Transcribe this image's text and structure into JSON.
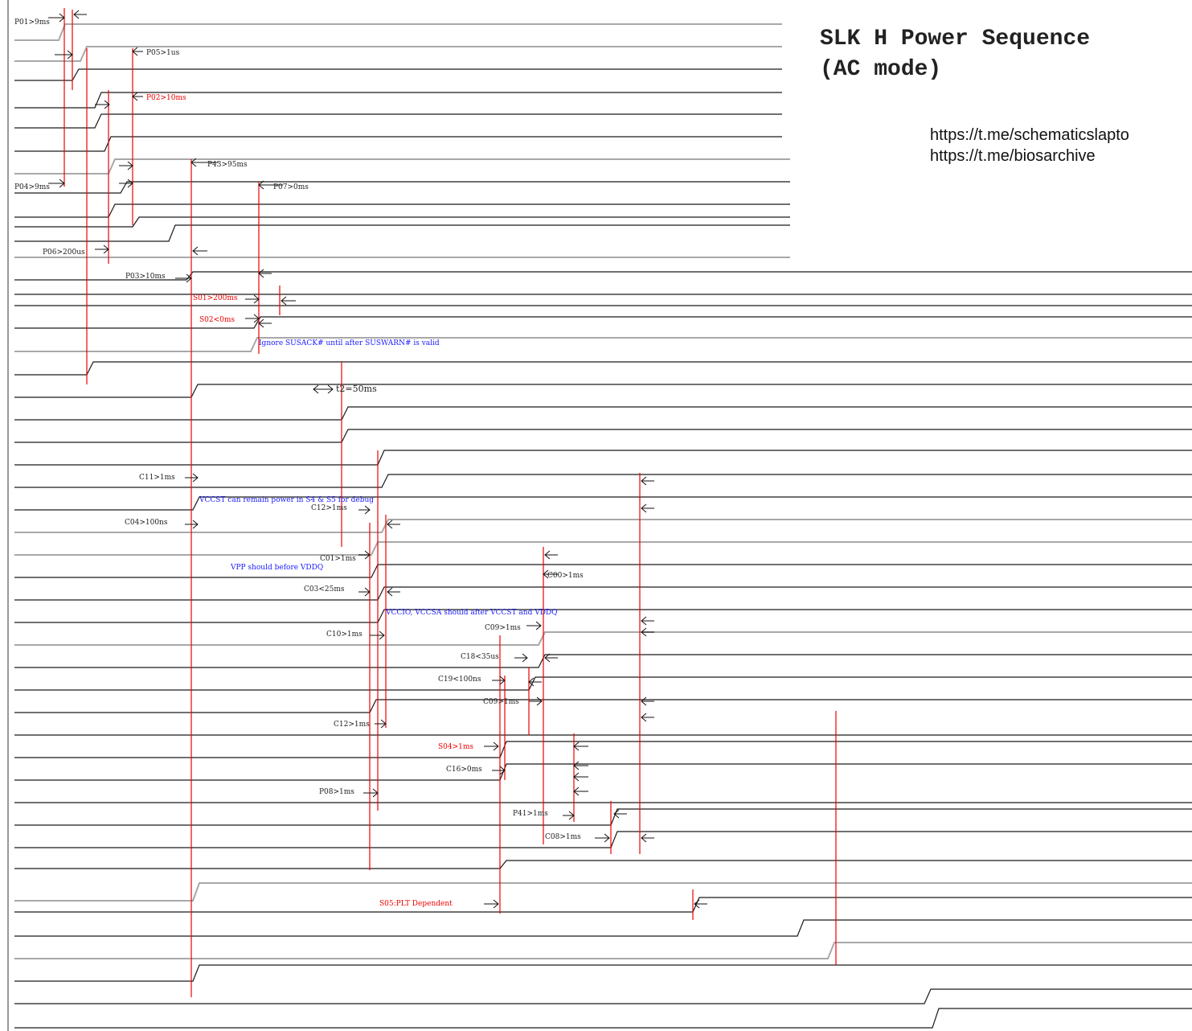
{
  "title": {
    "line1": "SLK H Power Sequence",
    "line2": "(AC mode)"
  },
  "links": [
    "https://t.me/schematicslapto",
    "https://t.me/biosarchive"
  ],
  "colors": {
    "signal_black": "#1a1a1a",
    "signal_gray": "#a8a8a8",
    "marker_red": "#ee0000",
    "note_blue": "#1a1aff",
    "label_black": "#222222"
  },
  "timing_labels": [
    {
      "text": "P01>9ms",
      "color": "black"
    },
    {
      "text": "P05>1us",
      "color": "black"
    },
    {
      "text": "P02>10ms",
      "color": "red"
    },
    {
      "text": "P43>95ms",
      "color": "black"
    },
    {
      "text": "P04>9ms",
      "color": "black"
    },
    {
      "text": "P07>0ms",
      "color": "black"
    },
    {
      "text": "P06>200us",
      "color": "black"
    },
    {
      "text": "P03>10ms",
      "color": "black"
    },
    {
      "text": "S01>200ms",
      "color": "red"
    },
    {
      "text": "S02<0ms",
      "color": "red"
    },
    {
      "text": "t2=50ms",
      "color": "black"
    },
    {
      "text": "C11>1ms",
      "color": "black"
    },
    {
      "text": "C04>100ns",
      "color": "black"
    },
    {
      "text": "C12>1ms",
      "color": "black"
    },
    {
      "text": "C01>1ms",
      "color": "black"
    },
    {
      "text": "C00>1ms",
      "color": "black"
    },
    {
      "text": "C03<25ms",
      "color": "black"
    },
    {
      "text": "C09>1ms",
      "color": "black"
    },
    {
      "text": "C10>1ms",
      "color": "black"
    },
    {
      "text": "C18<35us",
      "color": "black"
    },
    {
      "text": "C19<100ns",
      "color": "black"
    },
    {
      "text": "C09>1ms",
      "color": "black"
    },
    {
      "text": "C12>1ms",
      "color": "black"
    },
    {
      "text": "S04>1ms",
      "color": "red"
    },
    {
      "text": "C16>0ms",
      "color": "black"
    },
    {
      "text": "P08>1ms",
      "color": "black"
    },
    {
      "text": "P41>1ms",
      "color": "black"
    },
    {
      "text": "C08>1ms",
      "color": "black"
    },
    {
      "text": "S05:PLT Dependent",
      "color": "red"
    }
  ],
  "notes": [
    "Ignore SUSACK# until after SUSWARN# is valid",
    "VCCST can remain power in S4 & S5 for debug",
    "VPP should before VDDQ",
    "VCCIO, VCCSA should after VCCST and VDDQ"
  ]
}
